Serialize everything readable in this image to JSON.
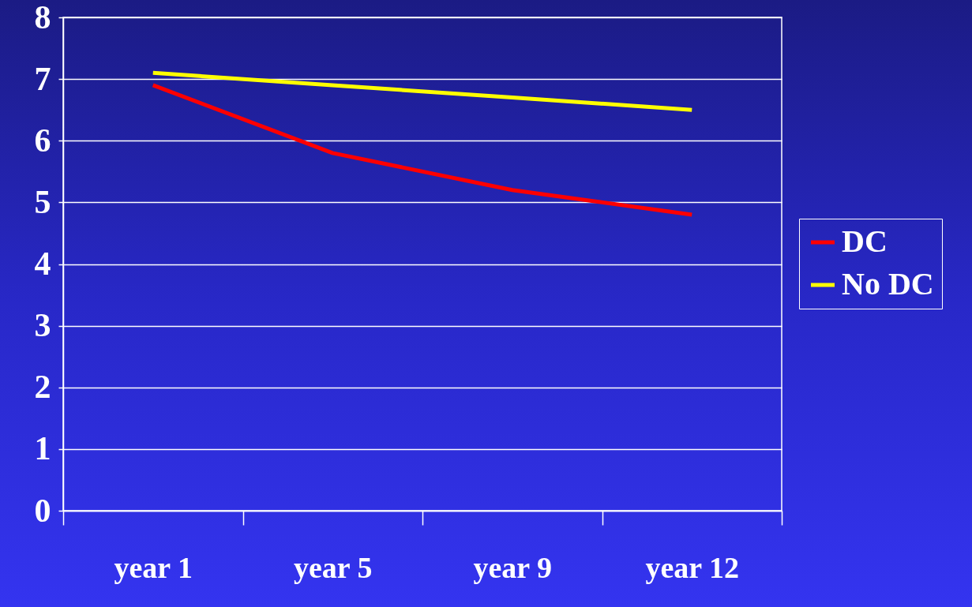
{
  "chart_data": {
    "type": "line",
    "categories": [
      "year 1",
      "year 5",
      "year 9",
      "year 12"
    ],
    "series": [
      {
        "name": "DC",
        "color": "#ff0000",
        "values": [
          6.9,
          5.8,
          5.2,
          4.8
        ]
      },
      {
        "name": "No DC",
        "color": "#ffff00",
        "values": [
          7.1,
          6.9,
          6.7,
          6.5
        ]
      }
    ],
    "ylim": [
      0,
      8
    ],
    "yticks": [
      0,
      1,
      2,
      3,
      4,
      5,
      6,
      7,
      8
    ],
    "grid": "y",
    "legend": "right"
  }
}
